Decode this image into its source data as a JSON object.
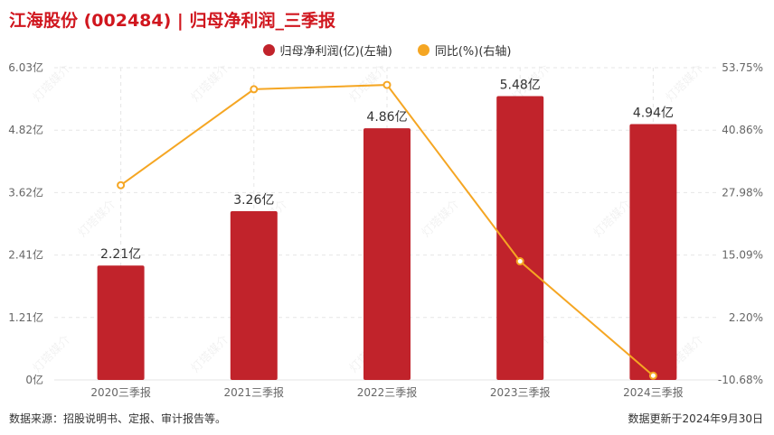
{
  "title": "江海股份 (002484) | 归母净利润_三季报",
  "colors": {
    "bar": "#c1232b",
    "line": "#f5a623",
    "title": "#d0161e",
    "grid": "#e6e6e6"
  },
  "legend": [
    {
      "label": "归母净利润(亿)(左轴)",
      "color": "#c1232b"
    },
    {
      "label": "同比(%)(右轴)",
      "color": "#f5a623"
    }
  ],
  "footer": {
    "source": "数据来源：招股说明书、定报、审计报告等。",
    "updated": "数据更新于2024年9月30日"
  },
  "watermark": "灯塔媒介",
  "chart_data": {
    "type": "bar",
    "title": "江海股份 (002484) | 归母净利润_三季报",
    "categories": [
      "2020三季报",
      "2021三季报",
      "2022三季报",
      "2023三季报",
      "2024三季报"
    ],
    "series": [
      {
        "name": "归母净利润(亿)(左轴)",
        "type": "bar",
        "axis": "left",
        "values": [
          2.21,
          3.26,
          4.86,
          5.48,
          4.94
        ],
        "labels": [
          "2.21亿",
          "3.26亿",
          "4.86亿",
          "5.48亿",
          "4.94亿"
        ]
      },
      {
        "name": "同比(%)(右轴)",
        "type": "line",
        "axis": "right",
        "values": [
          29.5,
          49.3,
          50.2,
          13.8,
          -9.8
        ]
      }
    ],
    "left_axis": {
      "min": 0,
      "max": 6.03,
      "ticks": [
        "0亿",
        "1.21亿",
        "2.41亿",
        "3.62亿",
        "4.82亿",
        "6.03亿"
      ]
    },
    "right_axis": {
      "min": -10.68,
      "max": 53.75,
      "ticks": [
        "-10.68%",
        "2.20%",
        "15.09%",
        "27.98%",
        "40.86%",
        "53.75%"
      ]
    },
    "grid": true,
    "legend_position": "top-center"
  }
}
